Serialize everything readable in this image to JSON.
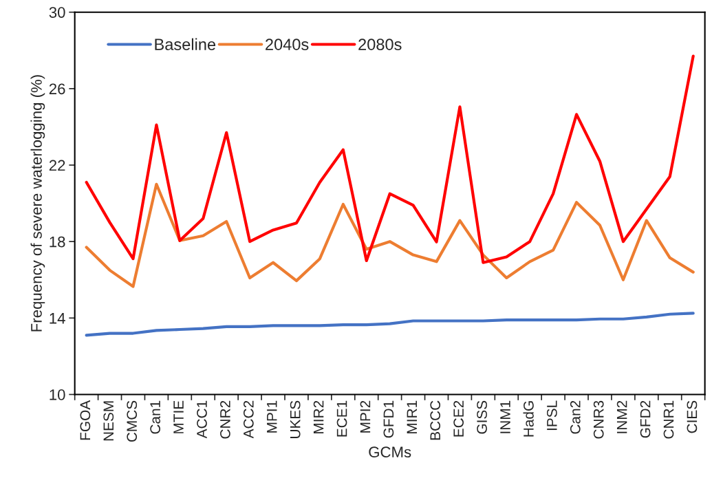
{
  "chart_data": {
    "type": "line",
    "xlabel": "GCMs",
    "ylabel": "Frequency of severe waterlogging (%)",
    "categories": [
      "FGOA",
      "NESM",
      "CMCS",
      "Can1",
      "MTIE",
      "ACC1",
      "CNR2",
      "ACC2",
      "MPI1",
      "UKES",
      "MIR2",
      "ECE1",
      "MPI2",
      "GFD1",
      "MIR1",
      "BCCC",
      "ECE2",
      "GISS",
      "INM1",
      "HadG",
      "IPSL",
      "Can2",
      "CNR3",
      "INM2",
      "GFD2",
      "CNR1",
      "CIES"
    ],
    "series": [
      {
        "name": "Baseline",
        "color": "#4472c4",
        "values": [
          13.1,
          13.2,
          13.2,
          13.35,
          13.4,
          13.45,
          13.55,
          13.55,
          13.6,
          13.6,
          13.6,
          13.65,
          13.65,
          13.7,
          13.85,
          13.85,
          13.85,
          13.85,
          13.9,
          13.9,
          13.9,
          13.9,
          13.95,
          13.95,
          14.05,
          14.2,
          14.25
        ]
      },
      {
        "name": "2040s",
        "color": "#ed7d31",
        "values": [
          17.7,
          16.5,
          15.65,
          21.0,
          18.05,
          18.3,
          19.05,
          16.1,
          16.9,
          15.95,
          17.1,
          19.95,
          17.6,
          18.0,
          17.3,
          16.95,
          19.1,
          17.3,
          16.1,
          16.95,
          17.55,
          20.05,
          18.85,
          16.0,
          19.1,
          17.15,
          16.4
        ]
      },
      {
        "name": "2080s",
        "color": "#ff0000",
        "values": [
          21.1,
          19.0,
          17.1,
          24.1,
          18.05,
          19.2,
          23.7,
          18.0,
          18.6,
          18.97,
          21.1,
          22.8,
          17.0,
          20.5,
          19.9,
          17.98,
          25.05,
          16.9,
          17.2,
          18.0,
          20.5,
          24.65,
          22.2,
          18.0,
          19.7,
          21.4,
          27.7
        ]
      }
    ],
    "ylim": [
      10,
      30
    ],
    "yticks": [
      10,
      14,
      18,
      22,
      26,
      30
    ],
    "grid": false,
    "legend": "top left",
    "marker": "none",
    "line_style": "solid"
  }
}
